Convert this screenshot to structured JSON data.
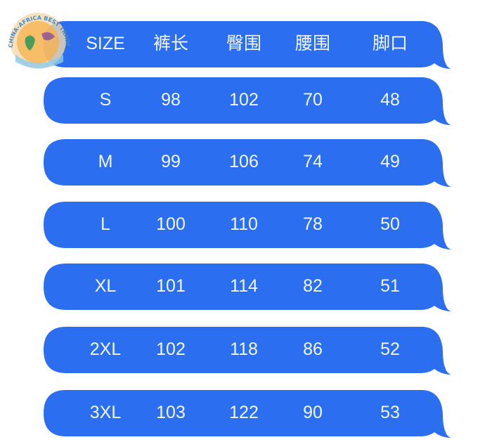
{
  "logo": {
    "text": "CHINA-AFRICA BEST TRADING PLATFORM"
  },
  "colors": {
    "bubble": "#2b6ff0",
    "text": "#f2f6ff"
  },
  "header": [
    "SIZE",
    "裤长",
    "臀围",
    "腰围",
    "脚口"
  ],
  "rows": [
    [
      "S",
      "98",
      "102",
      "70",
      "48"
    ],
    [
      "M",
      "99",
      "106",
      "74",
      "49"
    ],
    [
      "L",
      "100",
      "110",
      "78",
      "50"
    ],
    [
      "XL",
      "101",
      "114",
      "82",
      "51"
    ],
    [
      "2XL",
      "102",
      "118",
      "86",
      "52"
    ],
    [
      "3XL",
      "103",
      "122",
      "90",
      "53"
    ]
  ]
}
